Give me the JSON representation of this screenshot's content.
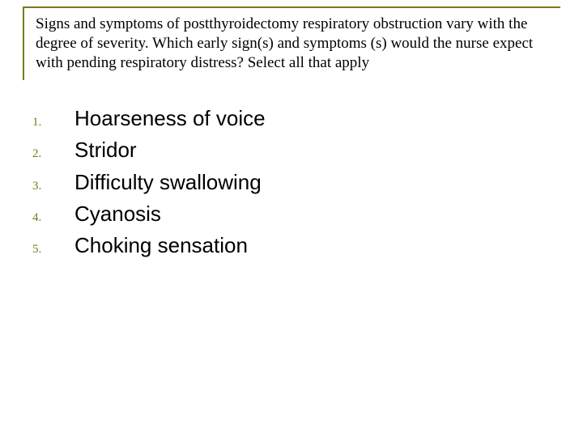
{
  "colors": {
    "border": "#7a7a1f",
    "num": "#7a7a1f",
    "text": "#000000",
    "background": "#ffffff"
  },
  "question": "Signs and symptoms of postthyroidectomy respiratory obstruction vary with the degree of severity. Which early sign(s) and symptoms (s) would the nurse expect with pending respiratory distress? Select all that apply",
  "options": [
    {
      "num": "1.",
      "text": "Hoarseness of voice"
    },
    {
      "num": "2.",
      "text": "Stridor"
    },
    {
      "num": "3.",
      "text": "Difficulty swallowing"
    },
    {
      "num": "4.",
      "text": "Cyanosis"
    },
    {
      "num": "5.",
      "text": "Choking sensation"
    }
  ]
}
